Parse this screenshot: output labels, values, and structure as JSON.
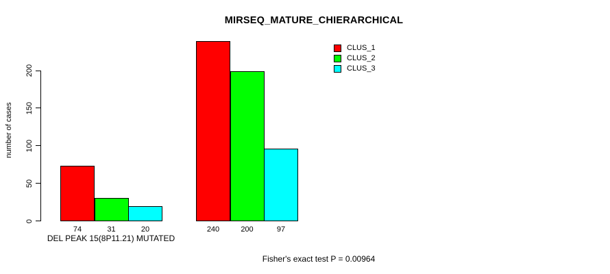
{
  "chart_data": {
    "type": "bar",
    "title": "MIRSEQ_MATURE_CHIERARCHICAL",
    "ylabel": "number of cases",
    "xlabel": "",
    "ylim": [
      0,
      245
    ],
    "yticks": [
      0,
      50,
      100,
      150,
      200
    ],
    "grid": false,
    "legend_position": "top-right",
    "series": [
      {
        "name": "CLUS_1",
        "color": "#ff0000"
      },
      {
        "name": "CLUS_2",
        "color": "#00ff00"
      },
      {
        "name": "CLUS_3",
        "color": "#00ffff"
      }
    ],
    "groups": [
      {
        "label": "DEL PEAK 15(8P11.21) MUTATED",
        "values": [
          74,
          31,
          20
        ]
      },
      {
        "label": "",
        "values": [
          240,
          200,
          97
        ]
      }
    ],
    "annotation": "Fisher's exact test P = 0.00964"
  }
}
